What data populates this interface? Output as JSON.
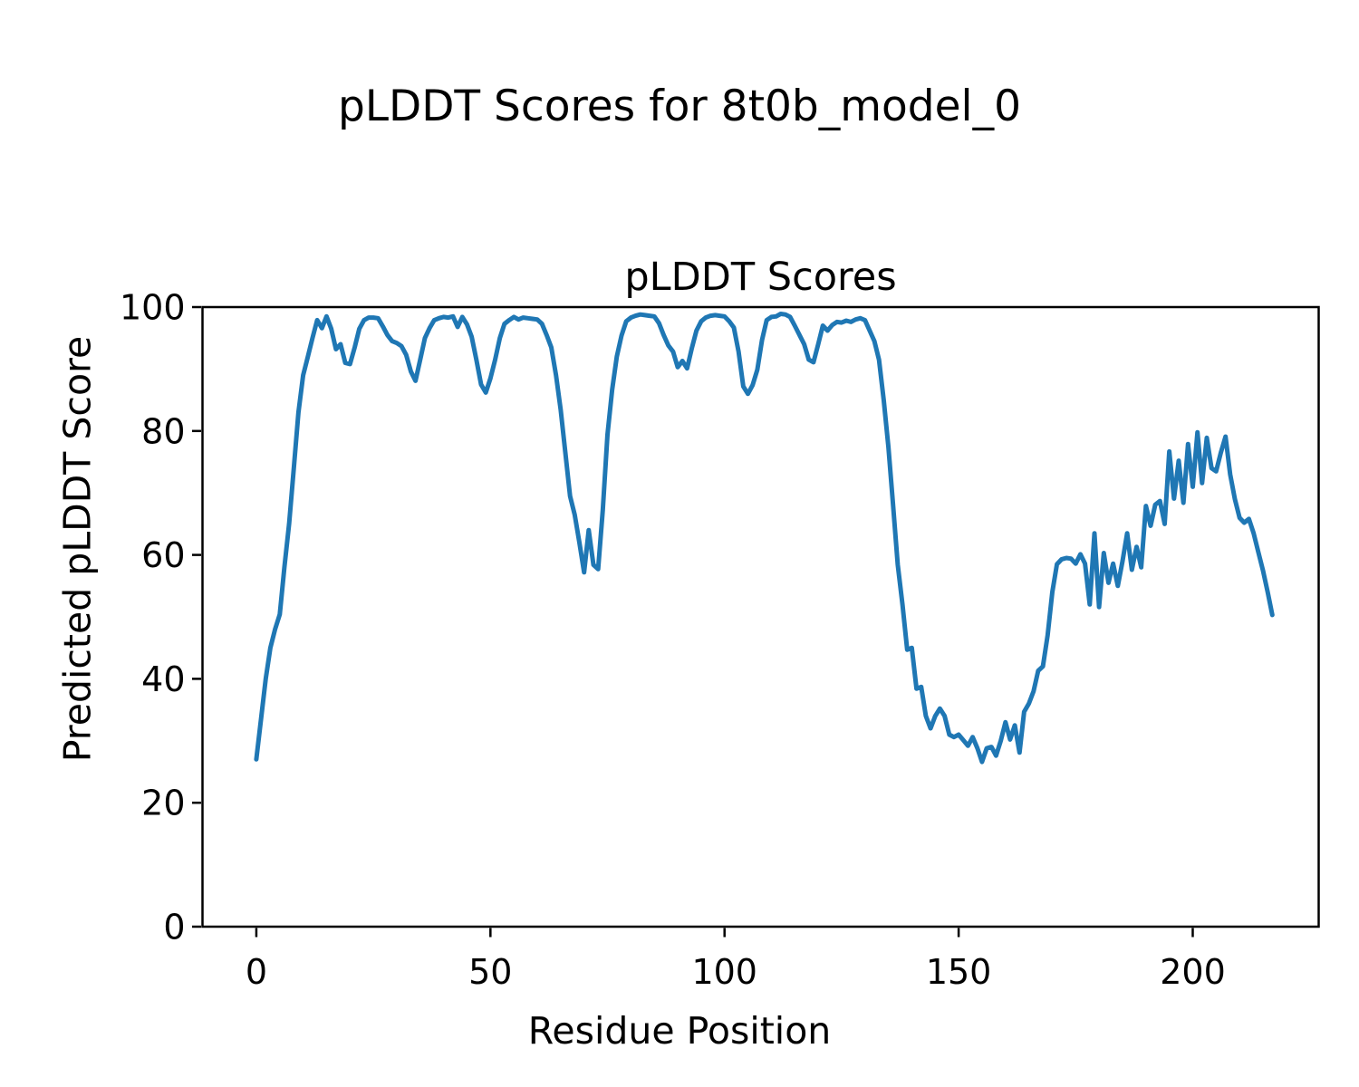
{
  "figure": {
    "suptitle": "pLDDT Scores for 8t0b_model_0"
  },
  "chart_data": {
    "type": "line",
    "title": "pLDDT Scores",
    "xlabel": "Residue Position",
    "ylabel": "Predicted pLDDT Score",
    "x_start": 0,
    "x_step": 1,
    "values": [
      27.0,
      33.5,
      40.0,
      45.0,
      48.0,
      50.4,
      58.0,
      65.0,
      74.0,
      83.0,
      89.0,
      92.0,
      95.0,
      97.9,
      96.6,
      98.5,
      96.5,
      93.2,
      94.0,
      91.0,
      90.8,
      93.5,
      96.5,
      97.9,
      98.3,
      98.3,
      98.2,
      96.9,
      95.5,
      94.5,
      94.2,
      93.7,
      92.3,
      89.6,
      88.1,
      91.5,
      95.0,
      96.6,
      97.9,
      98.2,
      98.4,
      98.3,
      98.5,
      96.8,
      98.4,
      97.2,
      95.2,
      91.5,
      87.5,
      86.2,
      88.5,
      91.5,
      95.0,
      97.3,
      97.9,
      98.4,
      98.0,
      98.3,
      98.2,
      98.1,
      98.0,
      97.3,
      95.5,
      93.5,
      89.0,
      83.5,
      76.5,
      69.5,
      66.5,
      62.0,
      57.2,
      64.0,
      58.4,
      57.7,
      67.2,
      79.4,
      86.7,
      92.0,
      95.4,
      97.7,
      98.3,
      98.6,
      98.8,
      98.7,
      98.6,
      98.5,
      97.4,
      95.5,
      93.8,
      92.8,
      90.3,
      91.3,
      90.1,
      93.3,
      96.2,
      97.7,
      98.3,
      98.6,
      98.7,
      98.6,
      98.5,
      97.7,
      96.7,
      92.8,
      87.2,
      86.0,
      87.4,
      89.9,
      94.7,
      97.9,
      98.4,
      98.5,
      98.9,
      98.8,
      98.4,
      97.0,
      95.5,
      94.0,
      91.5,
      91.1,
      94.0,
      97.0,
      96.2,
      97.1,
      97.6,
      97.5,
      97.8,
      97.6,
      98.0,
      98.2,
      97.9,
      96.2,
      94.5,
      91.5,
      85.0,
      77.4,
      68.1,
      58.4,
      52.0,
      44.7,
      45.0,
      38.4,
      38.7,
      34.0,
      32.0,
      34.0,
      35.2,
      34.0,
      31.0,
      30.6,
      31.0,
      30.1,
      29.2,
      30.6,
      28.8,
      26.6,
      28.8,
      29.0,
      27.6,
      30.0,
      33.0,
      30.2,
      32.5,
      28.1,
      34.7,
      36.0,
      38.0,
      41.3,
      42.0,
      47.0,
      54.0,
      58.5,
      59.3,
      59.5,
      59.4,
      58.6,
      60.1,
      58.6,
      52.0,
      63.5,
      51.6,
      60.3,
      55.5,
      58.6,
      55.0,
      59.0,
      63.5,
      57.6,
      61.3,
      58.0,
      67.9,
      64.7,
      68.1,
      68.7,
      65.0,
      76.7,
      69.1,
      75.2,
      68.4,
      77.9,
      71.0,
      79.8,
      71.6,
      78.9,
      74.0,
      73.5,
      76.5,
      79.1,
      73.0,
      69.0,
      66.0,
      65.2,
      65.8,
      63.5,
      60.5,
      57.5,
      54.0,
      50.3
    ],
    "xticks": [
      0,
      50,
      100,
      150,
      200
    ],
    "yticks": [
      0,
      20,
      40,
      60,
      80,
      100
    ],
    "xlim": [
      -11.5,
      226.9
    ],
    "ylim": [
      0,
      100
    ],
    "grid": false,
    "legend": false,
    "line_color": "#1f77b4"
  }
}
